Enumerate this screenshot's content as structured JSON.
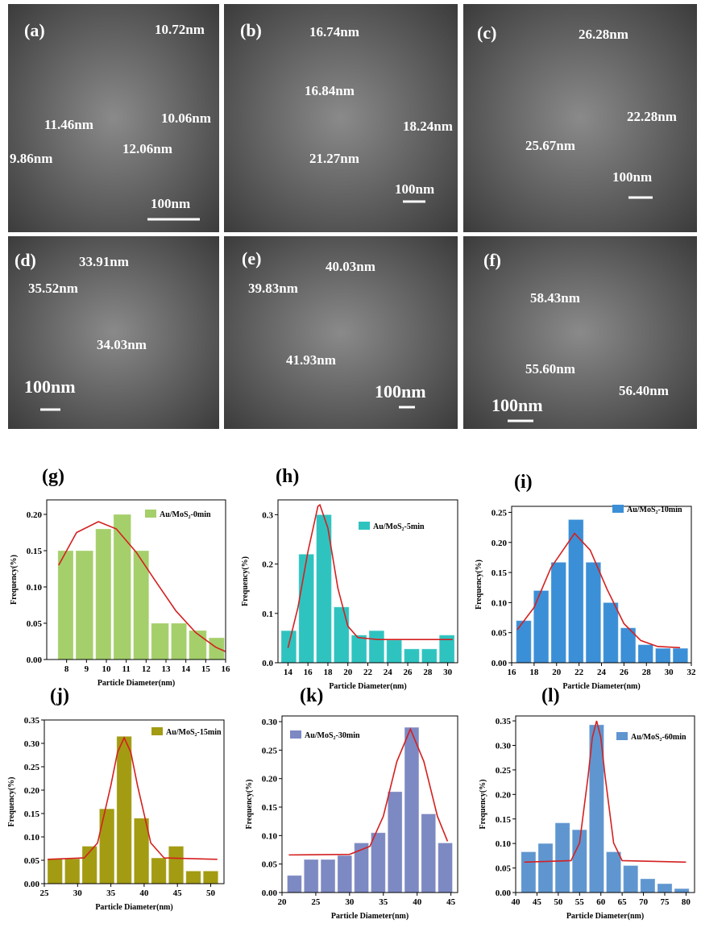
{
  "sem_images": [
    {
      "label": "(a)",
      "annotations": [
        "10.72nm",
        "11.46nm",
        "10.06nm",
        "9.86nm",
        "12.06nm"
      ],
      "scale_bar": "100nm"
    },
    {
      "label": "(b)",
      "annotations": [
        "16.74nm",
        "16.84nm",
        "18.24nm",
        "21.27nm"
      ],
      "scale_bar": "100nm"
    },
    {
      "label": "(c)",
      "annotations": [
        "26.28nm",
        "22.28nm",
        "25.67nm"
      ],
      "scale_bar": "100nm"
    },
    {
      "label": "(d)",
      "annotations": [
        "33.91nm",
        "35.52nm",
        "34.03nm"
      ],
      "scale_bar": "100nm"
    },
    {
      "label": "(e)",
      "annotations": [
        "40.03nm",
        "39.83nm",
        "41.93nm"
      ],
      "scale_bar": "100nm"
    },
    {
      "label": "(f)",
      "annotations": [
        "58.43nm",
        "55.60nm",
        "56.40nm"
      ],
      "scale_bar": "100nm"
    }
  ],
  "chart_data": [
    {
      "type": "histogram",
      "title": "(g)",
      "x_label": "Particle Diameter(nm)",
      "y_label": "Frequency(%)",
      "bins": [
        7.5,
        8.4,
        9.4,
        10.3,
        11.3,
        12.2,
        13.2,
        14.1,
        15.1,
        16
      ],
      "series": [
        {
          "name": "Au/MoS₂-0min",
          "color": "#a5cf6a",
          "values": [
            0.15,
            0.15,
            0.18,
            0.2,
            0.15,
            0.05,
            0.05,
            0.04,
            0.03
          ]
        }
      ],
      "fit": {
        "color": "#d42020",
        "x": [
          7.6,
          8.5,
          9.6,
          10.5,
          11.5,
          12.5,
          13.5,
          14.5,
          15.5,
          16
        ],
        "y": [
          0.13,
          0.175,
          0.19,
          0.18,
          0.148,
          0.107,
          0.067,
          0.037,
          0.017,
          0.011
        ]
      },
      "xlim": [
        7,
        16
      ],
      "xticks": [
        8,
        9,
        10,
        11,
        12,
        13,
        14,
        15,
        16
      ],
      "ylim": [
        0,
        0.22
      ],
      "yticks": [
        {
          "value": 0,
          "label": "0.00"
        },
        0.05,
        {
          "value": 0.1,
          "label": "0.10"
        },
        0.15,
        {
          "value": 0.2,
          "label": "0.20"
        }
      ]
    },
    {
      "type": "histogram",
      "title": "(h)",
      "x_label": "Particle Diameter(nm)",
      "y_label": "Frequency(%)",
      "bins": [
        13.2,
        14.96,
        16.72,
        18.48,
        20.24,
        22,
        23.76,
        25.52,
        27.28,
        29.04,
        30.8
      ],
      "series": [
        {
          "name": "Au/MoS₂-5min",
          "color": "#2fc3c0",
          "values": [
            0.065,
            0.22,
            0.3,
            0.113,
            0.056,
            0.065,
            0.046,
            0.028,
            0.028,
            0.056
          ]
        }
      ],
      "fit": {
        "color": "#d42020",
        "x": [
          14,
          15,
          16,
          17,
          17.2,
          18,
          19,
          20,
          21,
          23,
          30.5
        ],
        "y": [
          0.03,
          0.112,
          0.225,
          0.317,
          0.32,
          0.273,
          0.151,
          0.074,
          0.051,
          0.047,
          0.047
        ]
      },
      "xlim": [
        13,
        31
      ],
      "xticks": [
        14,
        16,
        18,
        20,
        22,
        24,
        26,
        28,
        30
      ],
      "ylim": [
        0,
        0.33
      ],
      "yticks": [
        {
          "value": 0,
          "label": "0.0"
        },
        0.1,
        0.2,
        0.3
      ]
    },
    {
      "type": "histogram",
      "title": "(i)",
      "x_label": "Particle Diameter(nm)",
      "y_label": "Frequency(%)",
      "bins": [
        16.3,
        17.85,
        19.4,
        20.95,
        22.5,
        24.05,
        25.6,
        27.15,
        28.7,
        30.25,
        31.8
      ],
      "series": [
        {
          "name": "Au/MoS₂-10min",
          "color": "#3b8fd6",
          "values": [
            0.07,
            0.12,
            0.167,
            0.238,
            0.167,
            0.1,
            0.058,
            0.03,
            0.024,
            0.024
          ]
        }
      ],
      "fit": {
        "color": "#d42020",
        "x": [
          16.5,
          18,
          19.5,
          21.6,
          23,
          24.5,
          26,
          27.5,
          29,
          31
        ],
        "y": [
          0.055,
          0.092,
          0.158,
          0.215,
          0.187,
          0.122,
          0.065,
          0.037,
          0.027,
          0.025
        ]
      },
      "xlim": [
        16,
        32
      ],
      "xticks": [
        16,
        18,
        20,
        22,
        24,
        26,
        28,
        30,
        32
      ],
      "ylim": [
        0,
        0.26
      ],
      "yticks": [
        {
          "value": 0,
          "label": "0.00"
        },
        0.05,
        {
          "value": 0.1,
          "label": "0.10"
        },
        0.15,
        {
          "value": 0.2,
          "label": "0.20"
        },
        0.25
      ]
    },
    {
      "type": "histogram",
      "title": "(j)",
      "x_label": "Particle Diameter(nm)",
      "y_label": "Frequency(%)",
      "bins": [
        25.3,
        27.9,
        30.5,
        33.1,
        35.7,
        38.3,
        40.9,
        43.5,
        46.1,
        48.7,
        51.3
      ],
      "series": [
        {
          "name": "Au/MoS₂-15min",
          "color": "#a39b12",
          "values": [
            0.053,
            0.053,
            0.08,
            0.16,
            0.315,
            0.14,
            0.055,
            0.08,
            0.027,
            0.027
          ]
        }
      ],
      "fit": {
        "color": "#d42020",
        "x": [
          25.5,
          31,
          33,
          35,
          36,
          37,
          38,
          39,
          41,
          43,
          51
        ],
        "y": [
          0.052,
          0.055,
          0.087,
          0.21,
          0.281,
          0.312,
          0.281,
          0.21,
          0.087,
          0.055,
          0.052
        ]
      },
      "xlim": [
        25,
        52
      ],
      "xticks": [
        25,
        30,
        35,
        40,
        45,
        50
      ],
      "ylim": [
        0,
        0.35
      ],
      "yticks": [
        {
          "value": 0,
          "label": "0.00"
        },
        0.05,
        {
          "value": 0.1,
          "label": "0.10"
        },
        0.15,
        {
          "value": 0.2,
          "label": "0.20"
        },
        0.25,
        {
          "value": 0.3,
          "label": "0.30"
        },
        0.35
      ]
    },
    {
      "type": "histogram",
      "title": "(k)",
      "x_label": "Particle Diameter(nm)",
      "y_label": "Frequency(%)",
      "bins": [
        20.6,
        23.08,
        25.56,
        28.04,
        30.52,
        33,
        35.48,
        37.96,
        40.44,
        42.92,
        45.4
      ],
      "series": [
        {
          "name": "Au/MoS₂-30min",
          "color": "#7d89c2",
          "values": [
            0.03,
            0.058,
            0.058,
            0.065,
            0.087,
            0.105,
            0.177,
            0.29,
            0.138,
            0.087
          ]
        }
      ],
      "fit": {
        "color": "#d42020",
        "x": [
          21,
          30,
          33,
          35,
          37,
          39,
          41,
          43,
          44.5
        ],
        "y": [
          0.066,
          0.067,
          0.081,
          0.134,
          0.23,
          0.287,
          0.23,
          0.134,
          0.09
        ]
      },
      "xlim": [
        20,
        46
      ],
      "xticks": [
        20,
        25,
        30,
        35,
        40,
        45
      ],
      "ylim": [
        0,
        0.31
      ],
      "yticks": [
        {
          "value": 0,
          "label": "0.00"
        },
        0.05,
        {
          "value": 0.1,
          "label": "0.10"
        },
        0.15,
        {
          "value": 0.2,
          "label": "0.20"
        },
        0.25,
        {
          "value": 0.3,
          "label": "0.30"
        }
      ]
    },
    {
      "type": "histogram",
      "title": "(l)",
      "x_label": "Particle Diameter(nm)",
      "y_label": "Frequency(%)",
      "bins": [
        41,
        45,
        49,
        53,
        57,
        61,
        65,
        69,
        73,
        77,
        81
      ],
      "series": [
        {
          "name": "Au/MoS₂-60min",
          "color": "#5f96d0",
          "values": [
            0.083,
            0.1,
            0.142,
            0.128,
            0.342,
            0.083,
            0.055,
            0.028,
            0.018,
            0.008
          ]
        }
      ],
      "fit": {
        "color": "#d42020",
        "x": [
          42,
          53,
          55,
          57,
          58,
          59,
          60,
          61,
          63,
          65,
          80
        ],
        "y": [
          0.062,
          0.065,
          0.101,
          0.237,
          0.316,
          0.35,
          0.316,
          0.237,
          0.101,
          0.065,
          0.062
        ]
      },
      "xlim": [
        40,
        82
      ],
      "xticks": [
        40,
        45,
        50,
        55,
        60,
        65,
        70,
        75,
        80
      ],
      "ylim": [
        0,
        0.36
      ],
      "yticks": [
        {
          "value": 0,
          "label": "0.00"
        },
        0.05,
        {
          "value": 0.1,
          "label": "0.10"
        },
        0.15,
        {
          "value": 0.2,
          "label": "0.20"
        },
        0.25,
        {
          "value": 0.3,
          "label": "0.30"
        },
        0.35
      ]
    }
  ]
}
